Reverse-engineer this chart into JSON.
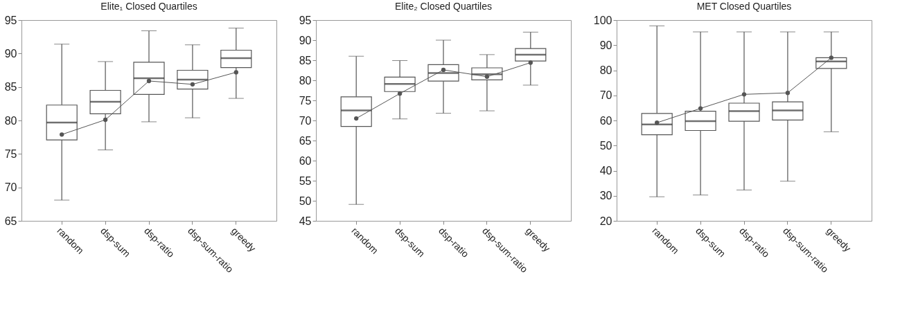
{
  "chart_data": [
    {
      "type": "box",
      "title": "Elite₁ Closed Quartiles",
      "categories": [
        "random",
        "dsp-sum",
        "dsp-ratio",
        "dsp-sum-ratio",
        "greedy"
      ],
      "boxes": [
        {
          "low": 68.1,
          "q1": 77.1,
          "median": 79.7,
          "q3": 82.3,
          "high": 91.4
        },
        {
          "low": 75.6,
          "q1": 81.0,
          "median": 82.8,
          "q3": 84.5,
          "high": 88.8
        },
        {
          "low": 79.8,
          "q1": 83.9,
          "median": 86.3,
          "q3": 88.7,
          "high": 93.4
        },
        {
          "low": 80.4,
          "q1": 84.7,
          "median": 86.1,
          "q3": 87.5,
          "high": 91.3
        },
        {
          "low": 83.3,
          "q1": 87.9,
          "median": 89.3,
          "q3": 90.5,
          "high": 93.8
        }
      ],
      "series": [
        {
          "type": "line",
          "x": [
            "random",
            "dsp-sum",
            "dsp-ratio",
            "dsp-sum-ratio",
            "greedy"
          ],
          "values": [
            77.9,
            80.1,
            85.9,
            85.4,
            87.2
          ],
          "color": "#555555"
        }
      ],
      "ylim": [
        65,
        95
      ],
      "yticks": [
        65,
        70,
        75,
        80,
        85,
        90,
        95
      ],
      "grid": false,
      "marker": "circle"
    },
    {
      "type": "box",
      "title": "Elite₂ Closed Quartiles",
      "categories": [
        "random",
        "dsp-sum",
        "dsp-ratio",
        "dsp-sum-ratio",
        "greedy"
      ],
      "boxes": [
        {
          "low": 49.1,
          "q1": 68.5,
          "median": 72.5,
          "q3": 75.9,
          "high": 86.0
        },
        {
          "low": 70.4,
          "q1": 77.2,
          "median": 79.1,
          "q3": 80.8,
          "high": 84.9
        },
        {
          "low": 71.8,
          "q1": 79.8,
          "median": 81.8,
          "q3": 83.9,
          "high": 90.0
        },
        {
          "low": 72.4,
          "q1": 80.1,
          "median": 81.5,
          "q3": 83.1,
          "high": 86.4
        },
        {
          "low": 78.8,
          "q1": 84.8,
          "median": 86.4,
          "q3": 87.9,
          "high": 92.0
        }
      ],
      "series": [
        {
          "type": "line",
          "x": [
            "random",
            "dsp-sum",
            "dsp-ratio",
            "dsp-sum-ratio",
            "greedy"
          ],
          "values": [
            70.5,
            76.7,
            82.6,
            80.9,
            84.4
          ],
          "color": "#555555"
        }
      ],
      "ylim": [
        45,
        95
      ],
      "yticks": [
        45,
        50,
        55,
        60,
        65,
        70,
        75,
        80,
        85,
        90,
        95
      ],
      "grid": false,
      "marker": "circle"
    },
    {
      "type": "box",
      "title": "MET Closed Quartiles",
      "categories": [
        "random",
        "dsp-sum",
        "dsp-ratio",
        "dsp-sum-ratio",
        "greedy"
      ],
      "boxes": [
        {
          "low": 29.6,
          "q1": 54.3,
          "median": 58.4,
          "q3": 62.8,
          "high": 97.7
        },
        {
          "low": 30.3,
          "q1": 56.0,
          "median": 59.7,
          "q3": 63.7,
          "high": 95.3
        },
        {
          "low": 32.3,
          "q1": 59.7,
          "median": 63.7,
          "q3": 66.9,
          "high": 95.3
        },
        {
          "low": 35.8,
          "q1": 60.2,
          "median": 64.0,
          "q3": 67.4,
          "high": 95.3
        },
        {
          "low": 55.5,
          "q1": 80.7,
          "median": 83.5,
          "q3": 85.0,
          "high": 95.3
        }
      ],
      "series": [
        {
          "type": "line",
          "x": [
            "random",
            "dsp-sum",
            "dsp-ratio",
            "dsp-sum-ratio",
            "greedy"
          ],
          "values": [
            59.1,
            64.8,
            70.4,
            71.0,
            85.0
          ],
          "color": "#555555"
        }
      ],
      "ylim": [
        20,
        100
      ],
      "yticks": [
        20,
        30,
        40,
        50,
        60,
        70,
        80,
        90,
        100
      ],
      "grid": false,
      "marker": "circle"
    }
  ]
}
